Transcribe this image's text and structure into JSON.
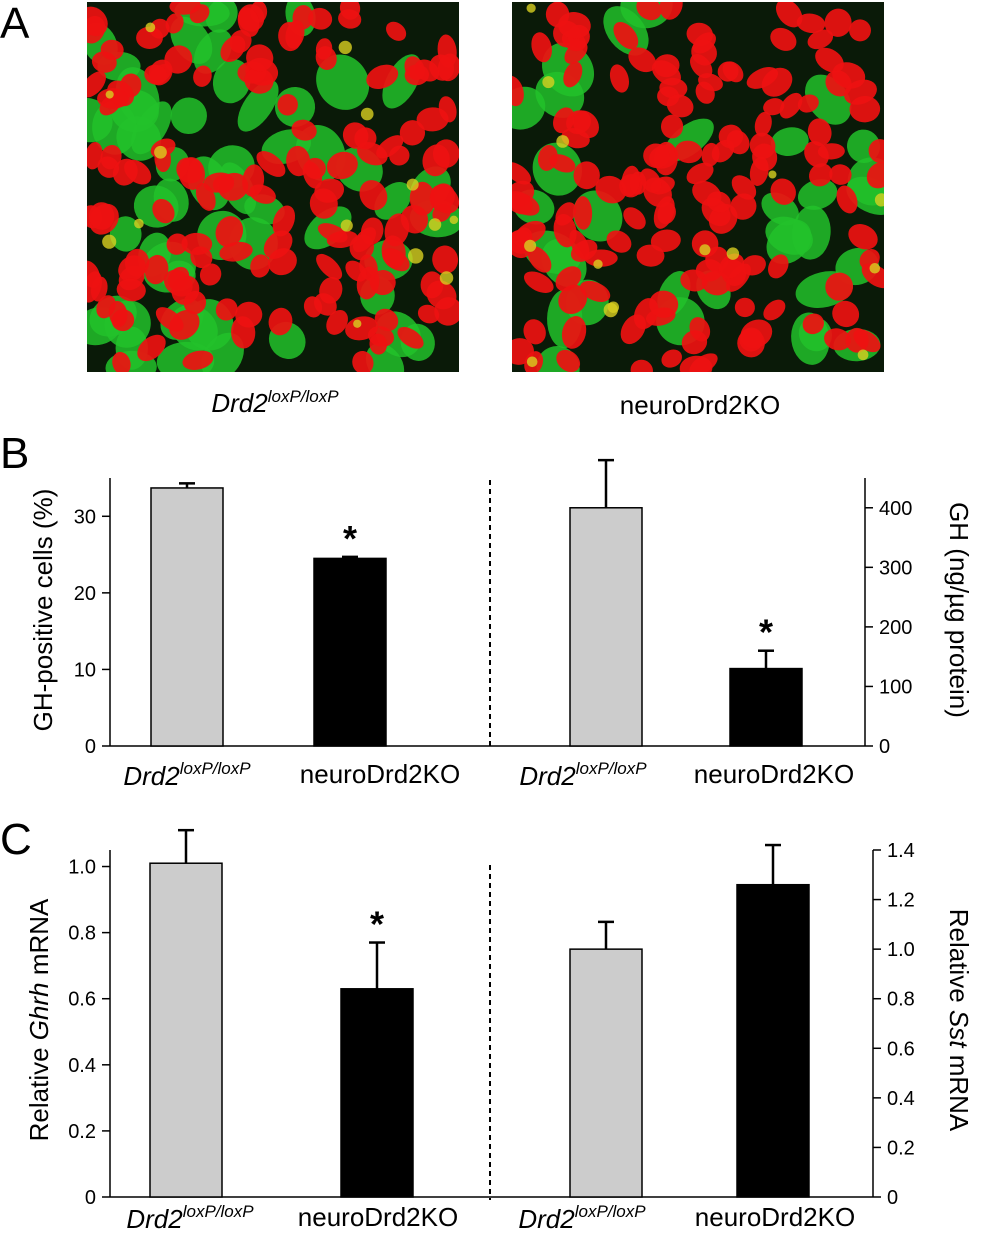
{
  "panel_labels": {
    "a": "A",
    "b": "B",
    "c": "C"
  },
  "panel_a": {
    "images": [
      {
        "caption_main": "Drd2",
        "caption_sup": "loxP/loxP",
        "caption_style": "italic"
      },
      {
        "caption_main": "neuroDrd2KO",
        "caption_sup": "",
        "caption_style": "normal"
      }
    ],
    "colors": {
      "nuclei": "#ee1111",
      "gh_stain": "#22c22a",
      "background": "#0a1a08"
    }
  },
  "chart_data": [
    {
      "type": "bar",
      "panel": "B-left",
      "categories": [
        "Drd2 loxP/loxP",
        "neuroDrd2KO"
      ],
      "values": [
        33.7,
        24.5
      ],
      "errors": [
        0.6,
        0.2
      ],
      "significance": [
        "",
        "*"
      ],
      "colors": [
        "#cccccc",
        "#000000"
      ],
      "ylabel": "GH-positive cells (%)",
      "ylim": [
        0,
        35
      ],
      "yticks": [
        0,
        10,
        20,
        30
      ],
      "axis": "left"
    },
    {
      "type": "bar",
      "panel": "B-right",
      "categories": [
        "Drd2 loxP/loxP",
        "neuroDrd2KO"
      ],
      "values": [
        400,
        130
      ],
      "errors": [
        80,
        30
      ],
      "significance": [
        "",
        "*"
      ],
      "colors": [
        "#cccccc",
        "#000000"
      ],
      "ylabel": "GH (ng/µg protein)",
      "ylim": [
        0,
        450
      ],
      "yticks": [
        0,
        100,
        200,
        300,
        400
      ],
      "axis": "right"
    },
    {
      "type": "bar",
      "panel": "C-left",
      "categories": [
        "Drd2 loxP/loxP",
        "neuroDrd2KO"
      ],
      "values": [
        1.01,
        0.63
      ],
      "errors": [
        0.1,
        0.14
      ],
      "significance": [
        "",
        "*"
      ],
      "colors": [
        "#cccccc",
        "#000000"
      ],
      "ylabel_prefix": "Relative ",
      "ylabel_gene": "Ghrh",
      "ylabel_suffix": " mRNA",
      "ylim": [
        0,
        1.05
      ],
      "yticks": [
        "0",
        "0.2",
        "0.4",
        "0.6",
        "0.8",
        "1.0"
      ],
      "axis": "left"
    },
    {
      "type": "bar",
      "panel": "C-right",
      "categories": [
        "Drd2 loxP/loxP",
        "neuroDrd2KO"
      ],
      "values": [
        1.0,
        1.26
      ],
      "errors": [
        0.11,
        0.16
      ],
      "significance": [
        "",
        ""
      ],
      "colors": [
        "#cccccc",
        "#000000"
      ],
      "ylabel_prefix": "Relative ",
      "ylabel_gene": "Sst",
      "ylabel_suffix": " mRNA",
      "ylim": [
        0,
        1.4
      ],
      "yticks": [
        "0",
        "0.2",
        "0.4",
        "0.6",
        "0.8",
        "1.0",
        "1.2",
        "1.4"
      ],
      "axis": "right"
    }
  ],
  "x_labels": {
    "control_main": "Drd2",
    "control_sup": "loxP/loxP",
    "ko": "neuroDrd2KO"
  }
}
